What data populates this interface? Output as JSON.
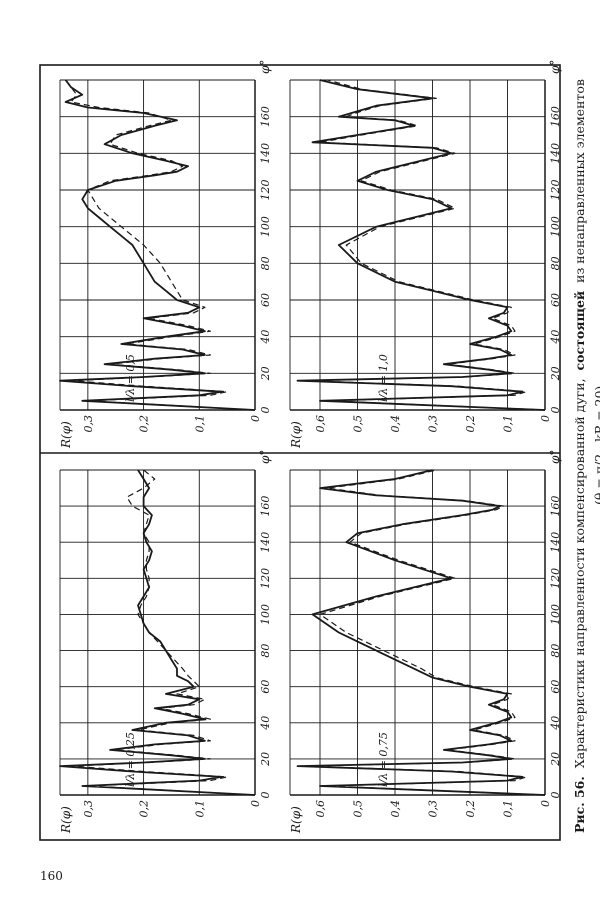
{
  "page_number": "160",
  "caption": {
    "line1_prefix": "Рис. 56.",
    "line1_text": "Характеристики направленности компенсированной дуги,",
    "line1_bold": "состоящей",
    "line1_rest": "из ненаправленных элементов",
    "line2": "(θ = π/2 , kR = 20)."
  },
  "chart_data": [
    {
      "type": "line",
      "panel": "top-left",
      "annotation": "l/λ = 0,25",
      "ylabel": "R(φ)",
      "xlabel": "φ°",
      "x_ticks": [
        0,
        20,
        40,
        60,
        80,
        100,
        120,
        140,
        160
      ],
      "y_ticks": [
        "0",
        "0,1",
        "0,2",
        "0,3"
      ],
      "xlim": [
        0,
        180
      ],
      "ylim": [
        0,
        0.35
      ],
      "grid": true,
      "series": [
        {
          "style": "solid",
          "x": [
            0,
            5,
            8,
            10,
            13,
            16,
            18,
            20,
            22,
            25,
            28,
            30,
            33,
            36,
            40,
            42,
            45,
            48,
            50,
            53,
            56,
            60,
            63,
            66,
            70,
            75,
            80,
            85,
            90,
            95,
            100,
            105,
            110,
            115,
            120,
            125,
            130,
            135,
            140,
            145,
            150,
            155,
            160,
            165,
            170,
            175,
            180
          ],
          "y": [
            0,
            0.31,
            0.1,
            0.06,
            0.22,
            0.35,
            0.2,
            0.09,
            0.15,
            0.26,
            0.18,
            0.09,
            0.12,
            0.22,
            0.16,
            0.09,
            0.13,
            0.18,
            0.12,
            0.1,
            0.16,
            0.11,
            0.12,
            0.14,
            0.14,
            0.15,
            0.16,
            0.17,
            0.19,
            0.2,
            0.205,
            0.21,
            0.2,
            0.19,
            0.195,
            0.2,
            0.19,
            0.185,
            0.195,
            0.2,
            0.19,
            0.185,
            0.2,
            0.2,
            0.19,
            0.2,
            0.21
          ]
        },
        {
          "style": "dashed",
          "x": [
            0,
            5,
            8,
            10,
            13,
            16,
            18,
            20,
            22,
            25,
            28,
            30,
            33,
            36,
            40,
            42,
            45,
            48,
            50,
            53,
            56,
            60,
            63,
            66,
            70,
            75,
            80,
            85,
            90,
            95,
            100,
            105,
            110,
            115,
            120,
            125,
            130,
            135,
            140,
            145,
            150,
            155,
            160,
            165,
            170,
            175,
            180
          ],
          "y": [
            0,
            0.3,
            0.08,
            0.05,
            0.2,
            0.33,
            0.19,
            0.08,
            0.14,
            0.25,
            0.17,
            0.08,
            0.11,
            0.21,
            0.15,
            0.08,
            0.12,
            0.17,
            0.11,
            0.09,
            0.14,
            0.1,
            0.11,
            0.12,
            0.13,
            0.145,
            0.16,
            0.175,
            0.19,
            0.2,
            0.21,
            0.205,
            0.195,
            0.19,
            0.19,
            0.195,
            0.195,
            0.19,
            0.19,
            0.2,
            0.195,
            0.19,
            0.22,
            0.23,
            0.2,
            0.18,
            0.2
          ]
        }
      ]
    },
    {
      "type": "line",
      "panel": "top-right",
      "annotation": "l/λ = 0,5",
      "ylabel": "R(φ)",
      "xlabel": "φ°",
      "x_ticks": [
        0,
        20,
        40,
        60,
        80,
        100,
        120,
        140,
        160
      ],
      "y_ticks": [
        "0",
        "0,1",
        "0,2",
        "0,3"
      ],
      "xlim": [
        0,
        180
      ],
      "ylim": [
        0,
        0.35
      ],
      "grid": true,
      "series": [
        {
          "style": "solid",
          "x": [
            0,
            5,
            8,
            10,
            13,
            16,
            18,
            20,
            22,
            25,
            28,
            30,
            33,
            36,
            40,
            43,
            46,
            50,
            53,
            56,
            60,
            65,
            70,
            80,
            90,
            100,
            105,
            110,
            115,
            120,
            125,
            128,
            130,
            133,
            136,
            140,
            145,
            150,
            155,
            158,
            162,
            165,
            168,
            172,
            176,
            180
          ],
          "y": [
            0,
            0.31,
            0.1,
            0.06,
            0.22,
            0.35,
            0.2,
            0.09,
            0.15,
            0.27,
            0.18,
            0.09,
            0.13,
            0.24,
            0.16,
            0.09,
            0.13,
            0.2,
            0.12,
            0.1,
            0.14,
            0.16,
            0.18,
            0.2,
            0.22,
            0.26,
            0.28,
            0.3,
            0.31,
            0.3,
            0.25,
            0.18,
            0.14,
            0.12,
            0.16,
            0.22,
            0.27,
            0.24,
            0.18,
            0.14,
            0.2,
            0.3,
            0.34,
            0.31,
            0.33,
            0.34
          ]
        },
        {
          "style": "dashed",
          "x": [
            0,
            5,
            8,
            10,
            13,
            16,
            18,
            20,
            22,
            25,
            28,
            30,
            33,
            36,
            40,
            43,
            46,
            50,
            53,
            56,
            60,
            65,
            70,
            80,
            90,
            100,
            105,
            110,
            115,
            120,
            125,
            128,
            130,
            133,
            136,
            140,
            145,
            150,
            155,
            158,
            162,
            165,
            168,
            172,
            176,
            180
          ],
          "y": [
            0,
            0.3,
            0.08,
            0.05,
            0.2,
            0.33,
            0.19,
            0.08,
            0.14,
            0.26,
            0.17,
            0.08,
            0.12,
            0.23,
            0.15,
            0.08,
            0.12,
            0.19,
            0.11,
            0.09,
            0.13,
            0.14,
            0.15,
            0.17,
            0.2,
            0.24,
            0.26,
            0.28,
            0.29,
            0.3,
            0.26,
            0.19,
            0.15,
            0.13,
            0.15,
            0.21,
            0.26,
            0.25,
            0.19,
            0.15,
            0.19,
            0.28,
            0.33,
            0.32,
            0.33,
            0.34
          ]
        }
      ]
    },
    {
      "type": "line",
      "panel": "bottom-left",
      "annotation": "l/λ = 0,75",
      "ylabel": "R(φ)",
      "xlabel": "φ°",
      "x_ticks": [
        0,
        20,
        40,
        60,
        80,
        100,
        120,
        140,
        160
      ],
      "y_ticks": [
        "0",
        "0,1",
        "0,2",
        "0,3",
        "0,4",
        "0,5",
        "0,6"
      ],
      "xlim": [
        0,
        180
      ],
      "ylim": [
        0,
        0.68
      ],
      "grid": true,
      "series": [
        {
          "style": "solid",
          "x": [
            0,
            5,
            8,
            10,
            13,
            16,
            18,
            20,
            22,
            25,
            28,
            30,
            33,
            36,
            40,
            43,
            46,
            50,
            53,
            56,
            60,
            65,
            70,
            80,
            90,
            100,
            110,
            120,
            130,
            140,
            145,
            150,
            155,
            158,
            160,
            163,
            166,
            170,
            175,
            180
          ],
          "y": [
            0,
            0.6,
            0.1,
            0.06,
            0.25,
            0.66,
            0.22,
            0.09,
            0.15,
            0.27,
            0.15,
            0.09,
            0.12,
            0.2,
            0.13,
            0.09,
            0.1,
            0.15,
            0.11,
            0.1,
            0.2,
            0.3,
            0.35,
            0.45,
            0.55,
            0.62,
            0.45,
            0.25,
            0.4,
            0.53,
            0.5,
            0.38,
            0.22,
            0.14,
            0.12,
            0.22,
            0.45,
            0.6,
            0.4,
            0.3
          ]
        },
        {
          "style": "dashed",
          "x": [
            0,
            5,
            8,
            10,
            13,
            16,
            18,
            20,
            22,
            25,
            28,
            30,
            33,
            36,
            40,
            43,
            46,
            50,
            53,
            56,
            60,
            65,
            70,
            80,
            90,
            100,
            110,
            120,
            130,
            140,
            145,
            150,
            155,
            158,
            160,
            163,
            166,
            170,
            175,
            180
          ],
          "y": [
            0,
            0.58,
            0.08,
            0.05,
            0.23,
            0.64,
            0.21,
            0.08,
            0.14,
            0.26,
            0.14,
            0.08,
            0.11,
            0.19,
            0.12,
            0.08,
            0.09,
            0.14,
            0.1,
            0.09,
            0.19,
            0.29,
            0.33,
            0.43,
            0.53,
            0.6,
            0.44,
            0.24,
            0.39,
            0.52,
            0.49,
            0.37,
            0.21,
            0.13,
            0.11,
            0.21,
            0.44,
            0.58,
            0.39,
            0.29
          ]
        }
      ]
    },
    {
      "type": "line",
      "panel": "bottom-right",
      "annotation": "l/λ = 1,0",
      "ylabel": "R(φ)",
      "xlabel": "φ°",
      "x_ticks": [
        0,
        20,
        40,
        60,
        80,
        100,
        120,
        140,
        160
      ],
      "y_ticks": [
        "0",
        "0,1",
        "0,2",
        "0,3",
        "0,4",
        "0,5",
        "0,6"
      ],
      "xlim": [
        0,
        180
      ],
      "ylim": [
        0,
        0.68
      ],
      "grid": true,
      "series": [
        {
          "style": "solid",
          "x": [
            0,
            5,
            8,
            10,
            13,
            16,
            18,
            20,
            22,
            25,
            28,
            30,
            33,
            36,
            40,
            43,
            46,
            50,
            53,
            56,
            60,
            65,
            70,
            80,
            90,
            100,
            105,
            110,
            115,
            120,
            125,
            130,
            135,
            140,
            143,
            146,
            150,
            155,
            158,
            160,
            163,
            166,
            170,
            175,
            180
          ],
          "y": [
            0,
            0.6,
            0.1,
            0.06,
            0.25,
            0.66,
            0.22,
            0.09,
            0.15,
            0.27,
            0.15,
            0.09,
            0.12,
            0.2,
            0.13,
            0.09,
            0.1,
            0.15,
            0.11,
            0.1,
            0.2,
            0.3,
            0.4,
            0.5,
            0.55,
            0.45,
            0.35,
            0.25,
            0.3,
            0.42,
            0.5,
            0.45,
            0.35,
            0.25,
            0.3,
            0.62,
            0.5,
            0.35,
            0.4,
            0.55,
            0.5,
            0.45,
            0.3,
            0.5,
            0.6
          ]
        },
        {
          "style": "dashed",
          "x": [
            0,
            5,
            8,
            10,
            13,
            16,
            18,
            20,
            22,
            25,
            28,
            30,
            33,
            36,
            40,
            43,
            46,
            50,
            53,
            56,
            60,
            65,
            70,
            80,
            90,
            100,
            105,
            110,
            115,
            120,
            125,
            130,
            135,
            140,
            143,
            146,
            150,
            155,
            158,
            160,
            163,
            166,
            170,
            175,
            180
          ],
          "y": [
            0,
            0.58,
            0.08,
            0.05,
            0.23,
            0.64,
            0.21,
            0.08,
            0.14,
            0.26,
            0.14,
            0.08,
            0.11,
            0.19,
            0.12,
            0.08,
            0.09,
            0.14,
            0.1,
            0.09,
            0.19,
            0.29,
            0.39,
            0.49,
            0.53,
            0.44,
            0.34,
            0.24,
            0.29,
            0.41,
            0.49,
            0.44,
            0.34,
            0.24,
            0.29,
            0.6,
            0.49,
            0.34,
            0.39,
            0.53,
            0.49,
            0.44,
            0.29,
            0.49,
            0.58
          ]
        }
      ]
    }
  ]
}
